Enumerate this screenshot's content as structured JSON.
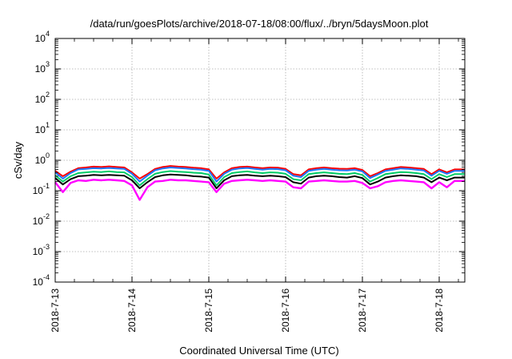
{
  "chart_data": {
    "type": "line",
    "title": "/data/run/goesPlots/archive/2018-07-18/08:00/flux/../bryn/5daysMoon.plot",
    "xlabel": "Coordinated Universal Time (UTC)",
    "ylabel": "cSv/day",
    "yscale": "log",
    "ylim": [
      0.0001,
      10000
    ],
    "xlim": [
      "2018-07-13T00:00",
      "2018-07-18T08:00"
    ],
    "grid": true,
    "x_ticks": [
      "2018-7-13",
      "2018-7-14",
      "2018-7-15",
      "2018-7-16",
      "2018-7-17",
      "2018-7-18"
    ],
    "y_ticks": [
      {
        "value": 0.0001,
        "mantissa": "10",
        "exp": "-4"
      },
      {
        "value": 0.001,
        "mantissa": "10",
        "exp": "-3"
      },
      {
        "value": 0.01,
        "mantissa": "10",
        "exp": "-2"
      },
      {
        "value": 0.1,
        "mantissa": "10",
        "exp": "-1"
      },
      {
        "value": 1,
        "mantissa": "10",
        "exp": "0"
      },
      {
        "value": 10,
        "mantissa": "10",
        "exp": "1"
      },
      {
        "value": 100,
        "mantissa": "10",
        "exp": "2"
      },
      {
        "value": 1000,
        "mantissa": "10",
        "exp": "3"
      },
      {
        "value": 10000,
        "mantissa": "10",
        "exp": "4"
      }
    ],
    "x_days": [
      0.0,
      0.1,
      0.2,
      0.3,
      0.4,
      0.5,
      0.6,
      0.7,
      0.8,
      0.9,
      1.0,
      1.1,
      1.2,
      1.3,
      1.4,
      1.5,
      1.6,
      1.7,
      1.8,
      1.9,
      2.0,
      2.1,
      2.2,
      2.3,
      2.4,
      2.5,
      2.6,
      2.7,
      2.8,
      2.9,
      3.0,
      3.1,
      3.2,
      3.3,
      3.4,
      3.5,
      3.6,
      3.7,
      3.8,
      3.9,
      4.0,
      4.1,
      4.2,
      4.3,
      4.4,
      4.5,
      4.6,
      4.7,
      4.8,
      4.9,
      5.0,
      5.1,
      5.2,
      5.33
    ],
    "series": [
      {
        "color": "#ff00ff",
        "values": [
          0.19,
          0.09,
          0.18,
          0.22,
          0.21,
          0.23,
          0.22,
          0.23,
          0.22,
          0.21,
          0.15,
          0.05,
          0.13,
          0.2,
          0.21,
          0.23,
          0.22,
          0.22,
          0.21,
          0.2,
          0.19,
          0.09,
          0.17,
          0.21,
          0.22,
          0.23,
          0.22,
          0.21,
          0.22,
          0.21,
          0.2,
          0.13,
          0.12,
          0.2,
          0.21,
          0.22,
          0.21,
          0.2,
          0.2,
          0.21,
          0.18,
          0.12,
          0.14,
          0.19,
          0.21,
          0.22,
          0.21,
          0.2,
          0.19,
          0.12,
          0.19,
          0.13,
          0.21,
          0.21
        ]
      },
      {
        "color": "#ff0000",
        "values": [
          0.45,
          0.3,
          0.42,
          0.55,
          0.58,
          0.62,
          0.6,
          0.63,
          0.6,
          0.58,
          0.4,
          0.25,
          0.35,
          0.52,
          0.6,
          0.65,
          0.62,
          0.6,
          0.57,
          0.55,
          0.5,
          0.25,
          0.4,
          0.55,
          0.6,
          0.62,
          0.58,
          0.55,
          0.58,
          0.57,
          0.52,
          0.35,
          0.32,
          0.5,
          0.55,
          0.58,
          0.55,
          0.53,
          0.52,
          0.55,
          0.48,
          0.3,
          0.38,
          0.5,
          0.55,
          0.6,
          0.58,
          0.55,
          0.52,
          0.35,
          0.5,
          0.4,
          0.5,
          0.5
        ]
      },
      {
        "color": "#1f77ff",
        "values": [
          0.4,
          0.25,
          0.38,
          0.5,
          0.52,
          0.55,
          0.54,
          0.56,
          0.54,
          0.52,
          0.36,
          0.2,
          0.31,
          0.47,
          0.54,
          0.58,
          0.56,
          0.54,
          0.51,
          0.49,
          0.45,
          0.2,
          0.36,
          0.49,
          0.54,
          0.56,
          0.52,
          0.49,
          0.52,
          0.51,
          0.47,
          0.31,
          0.28,
          0.45,
          0.49,
          0.52,
          0.49,
          0.47,
          0.46,
          0.49,
          0.43,
          0.26,
          0.34,
          0.45,
          0.49,
          0.54,
          0.52,
          0.49,
          0.46,
          0.31,
          0.45,
          0.36,
          0.45,
          0.45
        ]
      },
      {
        "color": "#00cc66",
        "values": [
          0.32,
          0.2,
          0.3,
          0.38,
          0.4,
          0.42,
          0.41,
          0.43,
          0.41,
          0.4,
          0.28,
          0.15,
          0.24,
          0.36,
          0.41,
          0.44,
          0.42,
          0.41,
          0.39,
          0.38,
          0.34,
          0.15,
          0.28,
          0.38,
          0.41,
          0.43,
          0.4,
          0.38,
          0.4,
          0.39,
          0.36,
          0.24,
          0.22,
          0.35,
          0.38,
          0.4,
          0.38,
          0.36,
          0.35,
          0.38,
          0.33,
          0.2,
          0.26,
          0.35,
          0.38,
          0.41,
          0.4,
          0.38,
          0.35,
          0.24,
          0.35,
          0.28,
          0.35,
          0.35
        ]
      },
      {
        "color": "#000000",
        "values": [
          0.26,
          0.16,
          0.24,
          0.3,
          0.31,
          0.33,
          0.32,
          0.33,
          0.32,
          0.31,
          0.22,
          0.12,
          0.19,
          0.28,
          0.32,
          0.34,
          0.33,
          0.32,
          0.3,
          0.29,
          0.27,
          0.12,
          0.22,
          0.3,
          0.32,
          0.33,
          0.31,
          0.3,
          0.31,
          0.3,
          0.28,
          0.19,
          0.17,
          0.27,
          0.3,
          0.31,
          0.3,
          0.28,
          0.27,
          0.3,
          0.26,
          0.16,
          0.2,
          0.27,
          0.3,
          0.32,
          0.31,
          0.3,
          0.27,
          0.19,
          0.27,
          0.22,
          0.27,
          0.27
        ]
      }
    ]
  }
}
